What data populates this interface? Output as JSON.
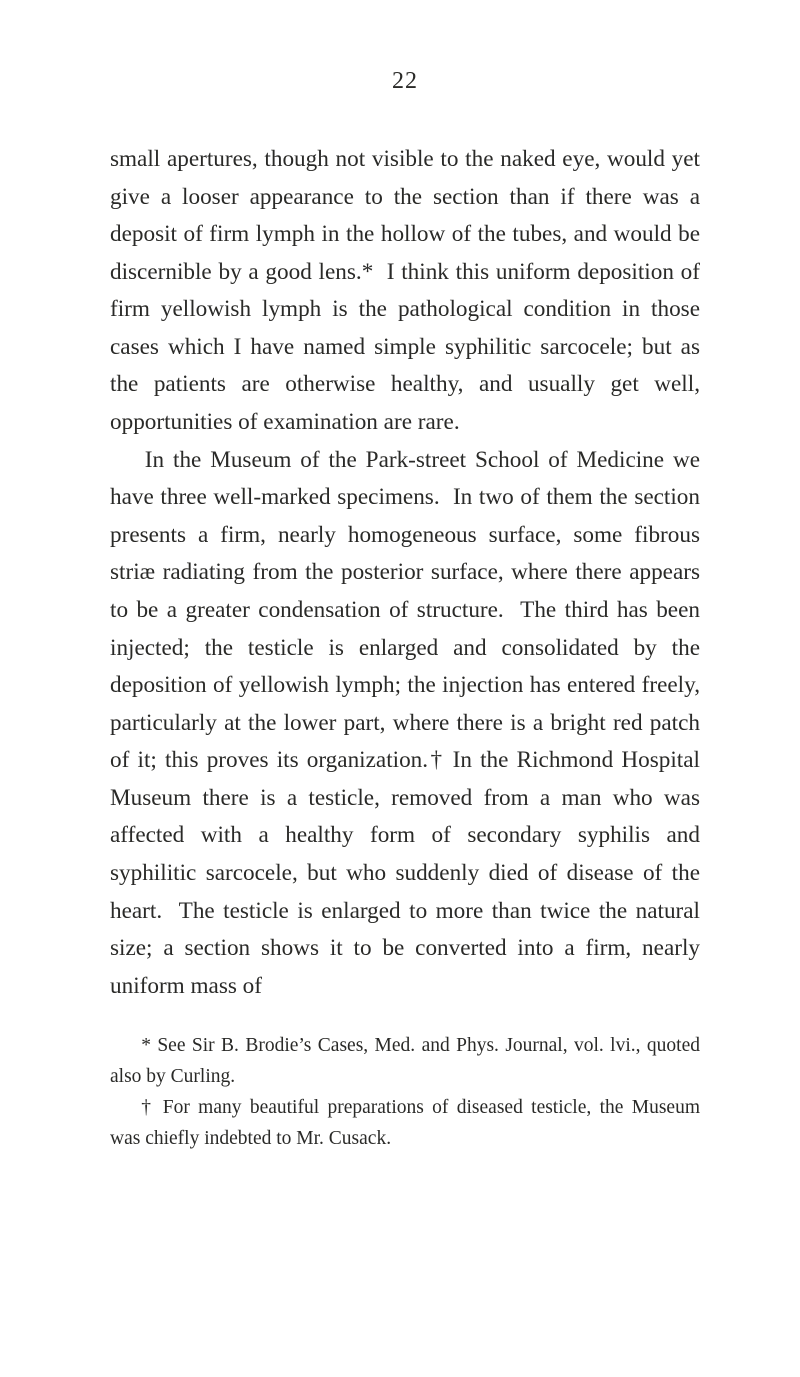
{
  "page": {
    "number": "22"
  },
  "body": {
    "p1": "small apertures, though not visible to the naked eye, would yet give a looser appearance to the section than if there was a deposit of firm lymph in the hol­low of the tubes, and would be discernible by a good lens.*  I think this uniform deposition of firm yel­lowish lymph is the pathological condition in those cases which I have named simple syphilitic sarco­cele; but as the patients are otherwise healthy, and usually get well, opportunities of examination are rare.",
    "p2": "In the Museum of the Park-street School of Me­dicine we have three well-marked specimens.  In two of them the section presents a firm, nearly ho­mogeneous surface, some fibrous striæ radiating from the posterior surface, where there appears to be a greater condensation of structure.  The third has been injected; the testicle is enlarged and consoli­dated by the deposition of yellowish lymph; the injection has entered freely, particularly at the lower part, where there is a bright red patch of it; this proves its organization.† In the Richmond Hospital Museum there is a testicle, removed from a man who was affected with a healthy form of secondary syphi­lis and syphilitic sarcocele, but who suddenly died of disease of the heart.  The testicle is enlarged to more than twice the natural size; a section shows it to be converted into a firm, nearly uniform mass of"
  },
  "footnotes": {
    "f1": "* See Sir B. Brodie’s Cases, Med. and Phys. Journal, vol. lvi., quoted also by Curling.",
    "f2": "† For many beautiful preparations of diseased testicle, the Mu­seum was chiefly indebted to Mr. Cusack."
  },
  "style": {
    "background_color": "#ffffff",
    "text_color": "#2a2a28",
    "body_fontsize": 23.2,
    "footnote_fontsize": 19.5,
    "pagenum_fontsize": 24,
    "line_height": 1.62,
    "font_family": "Times New Roman"
  }
}
